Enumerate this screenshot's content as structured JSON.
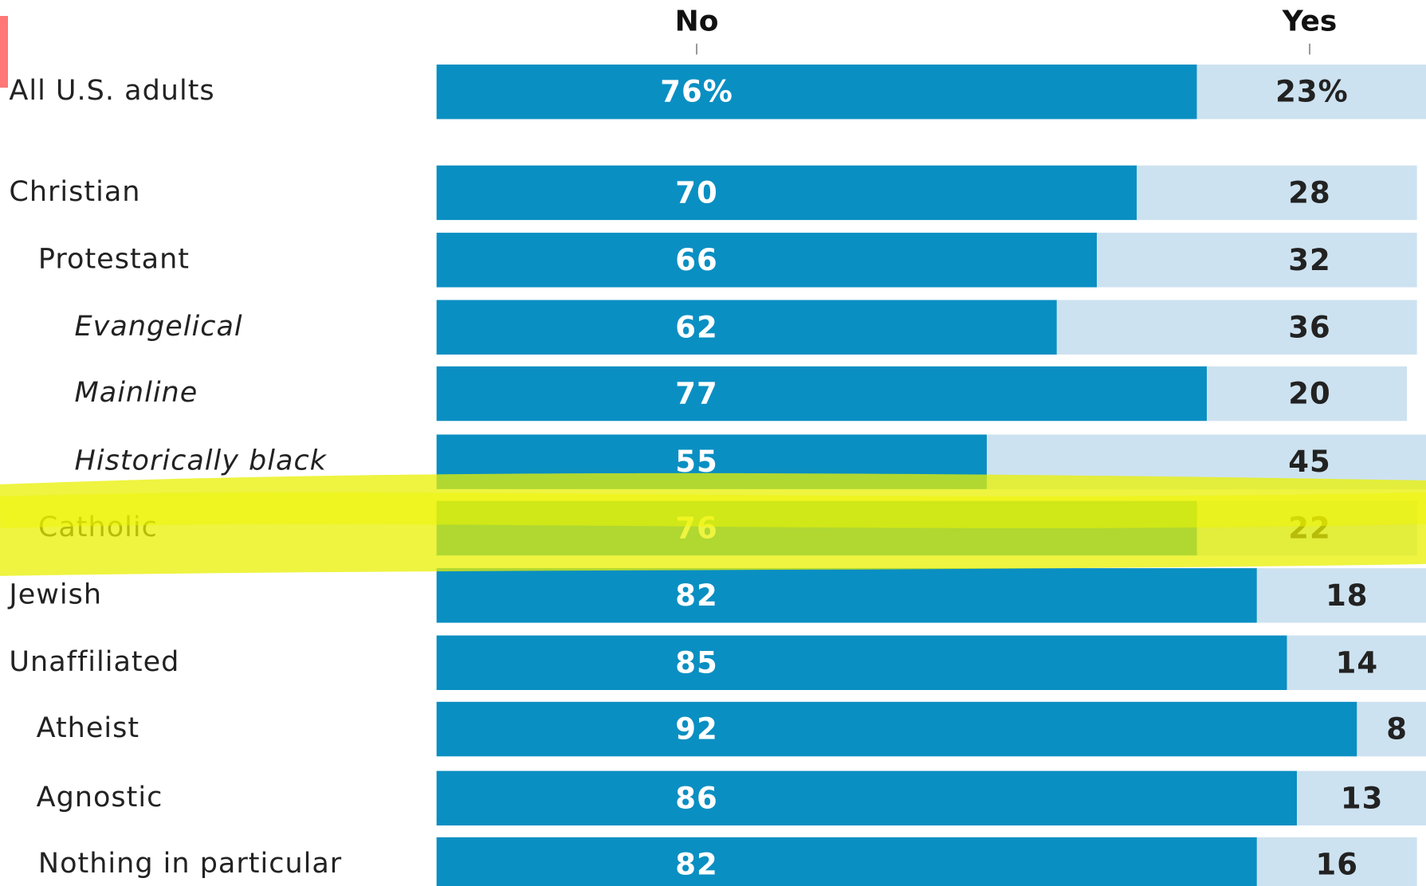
{
  "chart_data": {
    "type": "stacked_barh",
    "categories": [
      "All U.S. adults",
      "Christian",
      "Protestant",
      "Evangelical",
      "Mainline",
      "Historically black",
      "Catholic",
      "Jewish",
      "Unaffiliated",
      "Atheist",
      "Agnostic",
      "Nothing in particular"
    ],
    "series": [
      {
        "name": "No",
        "color": "#0a8fc2",
        "values": [
          76,
          70,
          66,
          62,
          77,
          55,
          76,
          82,
          85,
          92,
          86,
          82
        ],
        "value_labels": [
          "76%",
          "70",
          "66",
          "62",
          "77",
          "55",
          "76",
          "82",
          "85",
          "92",
          "86",
          "82"
        ]
      },
      {
        "name": "Yes",
        "color": "#cde2f0",
        "values": [
          23,
          28,
          32,
          36,
          20,
          45,
          22,
          18,
          14,
          8,
          13,
          16
        ],
        "value_labels": [
          "23%",
          "28",
          "32",
          "36",
          "20",
          "45",
          "22",
          "18",
          "14",
          "8",
          "13",
          "16"
        ]
      }
    ],
    "xlim": [
      0,
      100
    ]
  }
}
